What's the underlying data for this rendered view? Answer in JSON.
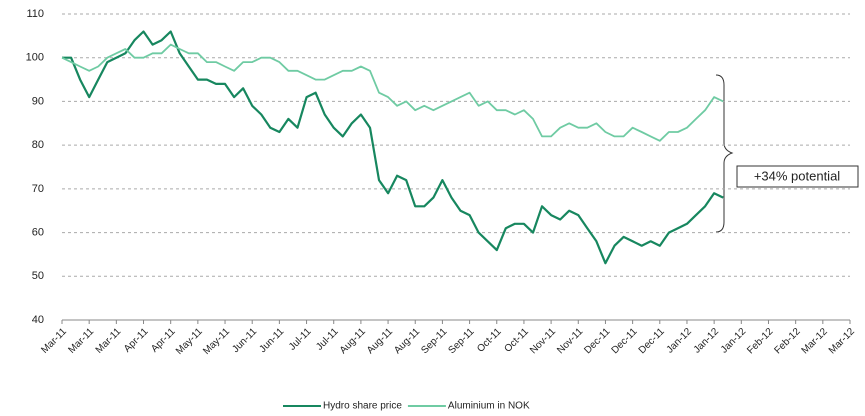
{
  "chart_data": {
    "type": "line",
    "annotation": "+34% potential",
    "categories": [
      "Mar-11",
      null,
      null,
      "Mar-11",
      null,
      null,
      "Mar-11",
      null,
      null,
      "Apr-11",
      null,
      null,
      "Apr-11",
      null,
      null,
      "May-11",
      null,
      null,
      "May-11",
      null,
      null,
      "Jun-11",
      null,
      null,
      "Jun-11",
      null,
      null,
      "Jul-11",
      null,
      null,
      "Jul-11",
      null,
      null,
      "Aug-11",
      null,
      null,
      "Aug-11",
      null,
      null,
      "Aug-11",
      null,
      null,
      "Sep-11",
      null,
      null,
      "Sep-11",
      null,
      null,
      "Oct-11",
      null,
      null,
      "Oct-11",
      null,
      null,
      "Nov-11",
      null,
      null,
      "Nov-11",
      null,
      null,
      "Dec-11",
      null,
      null,
      "Dec-11",
      null,
      null,
      "Dec-11",
      null,
      null,
      "Jan-12",
      null,
      null,
      "Jan-12",
      null,
      null,
      "Jan-12",
      null,
      null,
      "Feb-12",
      null,
      null,
      "Feb-12",
      null,
      null,
      "Mar-12",
      null,
      null,
      "Mar-12"
    ],
    "series": [
      {
        "name": "Hydro share price",
        "color": "#17875f",
        "values": [
          100,
          100,
          95,
          91,
          95,
          99,
          100,
          101,
          104,
          106,
          103,
          104,
          106,
          101,
          98,
          95,
          95,
          94,
          94,
          91,
          93,
          89,
          87,
          84,
          83,
          86,
          84,
          91,
          92,
          87,
          84,
          82,
          85,
          87,
          84,
          72,
          69,
          73,
          72,
          66,
          66,
          68,
          72,
          68,
          65,
          64,
          60,
          58,
          56,
          61,
          62,
          62,
          60,
          66,
          64,
          63,
          65,
          64,
          61,
          58,
          53,
          57,
          59,
          58,
          57,
          58,
          57,
          60,
          61,
          62,
          64,
          66,
          69,
          68,
          null,
          null,
          null,
          null,
          null,
          null,
          null,
          null,
          null,
          null,
          null,
          null,
          null,
          null
        ]
      },
      {
        "name": "Aluminium in NOK",
        "color": "#6fcba3",
        "values": [
          100,
          99,
          98,
          97,
          98,
          100,
          101,
          102,
          100,
          100,
          101,
          101,
          103,
          102,
          101,
          101,
          99,
          99,
          98,
          97,
          99,
          99,
          100,
          100,
          99,
          97,
          97,
          96,
          95,
          95,
          96,
          97,
          97,
          98,
          97,
          92,
          91,
          89,
          90,
          88,
          89,
          88,
          89,
          90,
          91,
          92,
          89,
          90,
          88,
          88,
          87,
          88,
          86,
          82,
          82,
          84,
          85,
          84,
          84,
          85,
          83,
          82,
          82,
          84,
          83,
          82,
          81,
          83,
          83,
          84,
          86,
          88,
          91,
          90,
          null,
          null,
          null,
          null,
          null,
          null,
          null,
          null,
          null,
          null,
          null,
          null,
          null,
          null
        ]
      }
    ],
    "ylim": [
      40,
      110
    ],
    "yticks": [
      40,
      50,
      60,
      70,
      80,
      90,
      100,
      110
    ],
    "grid": true,
    "legend": "bottom"
  }
}
